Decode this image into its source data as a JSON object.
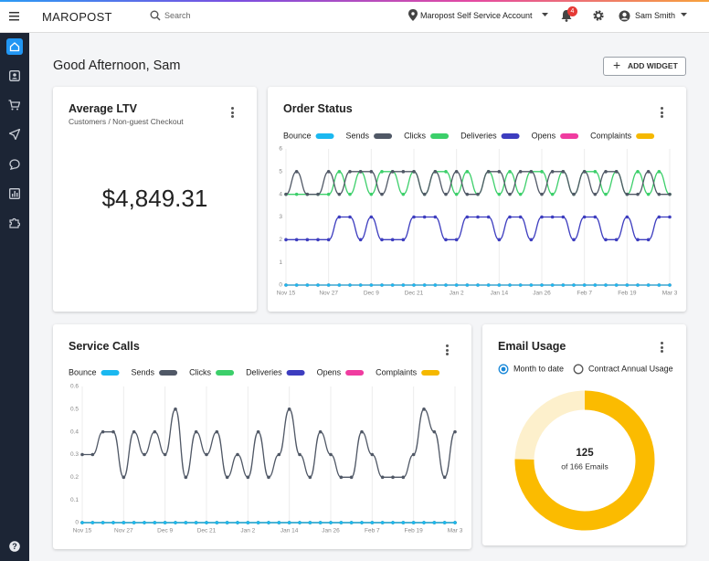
{
  "header": {
    "logo": "MAROPOST",
    "search_placeholder": "Search",
    "account": "Maropost Self Service Account",
    "notifications": "4",
    "user": "Sam Smith"
  },
  "page": {
    "greeting": "Good Afternoon, Sam",
    "add_widget": "ADD WIDGET"
  },
  "ltv_card": {
    "title": "Average LTV",
    "subtitle": "Customers / Non-guest Checkout",
    "value": "$4,849.31"
  },
  "chart_data": [
    {
      "type": "line",
      "title": "Order Status",
      "categories": [
        "Nov 15",
        null,
        null,
        null,
        "Nov 27",
        null,
        null,
        null,
        "Dec 9",
        null,
        null,
        null,
        "Dec 21",
        null,
        null,
        null,
        "Jan 2",
        null,
        null,
        null,
        "Jan 14",
        null,
        null,
        null,
        "Jan 26",
        null,
        null,
        null,
        "Feb 7",
        null,
        null,
        null,
        "Feb 19",
        null,
        null,
        null,
        "Mar 3"
      ],
      "ylim": [
        0,
        6
      ],
      "yticks": [
        0,
        1,
        2,
        3,
        4,
        5,
        6
      ],
      "series": [
        {
          "name": "Bounce",
          "color": "#1bb8f0",
          "values": [
            0,
            0,
            0,
            0,
            0,
            0,
            0,
            0,
            0,
            0,
            0,
            0,
            0,
            0,
            0,
            0,
            0,
            0,
            0,
            0,
            0,
            0,
            0,
            0,
            0,
            0,
            0,
            0,
            0,
            0,
            0,
            0,
            0,
            0,
            0,
            0,
            0
          ]
        },
        {
          "name": "Sends",
          "color": "#505866",
          "values": [
            4,
            5,
            4,
            4,
            5,
            4,
            5,
            5,
            5,
            4,
            5,
            5,
            5,
            4,
            5,
            4,
            5,
            4,
            4,
            5,
            5,
            4,
            5,
            5,
            4,
            5,
            5,
            4,
            5,
            4,
            5,
            5,
            4,
            4,
            5,
            4,
            4
          ]
        },
        {
          "name": "Clicks",
          "color": "#3ccf6a",
          "values": [
            4,
            4,
            4,
            4,
            4,
            5,
            4,
            5,
            4,
            5,
            5,
            4,
            5,
            4,
            5,
            5,
            4,
            5,
            4,
            5,
            4,
            5,
            4,
            5,
            5,
            4,
            5,
            4,
            5,
            5,
            4,
            5,
            4,
            5,
            4,
            5,
            4
          ]
        },
        {
          "name": "Deliveries",
          "color": "#3d3dbf",
          "values": [
            2,
            2,
            2,
            2,
            2,
            3,
            3,
            2,
            3,
            2,
            2,
            2,
            3,
            3,
            3,
            2,
            2,
            3,
            3,
            3,
            2,
            3,
            3,
            2,
            3,
            3,
            3,
            2,
            3,
            3,
            2,
            2,
            3,
            2,
            2,
            3,
            3
          ]
        },
        {
          "name": "Opens",
          "color": "#f03ca0",
          "values": [
            0,
            0,
            0,
            0,
            0,
            0,
            0,
            0,
            0,
            0,
            0,
            0,
            0,
            0,
            0,
            0,
            0,
            0,
            0,
            0,
            0,
            0,
            0,
            0,
            0,
            0,
            0,
            0,
            0,
            0,
            0,
            0,
            0,
            0,
            0,
            0,
            0
          ]
        },
        {
          "name": "Complaints",
          "color": "#f5b800",
          "values": [
            0,
            0,
            0,
            0,
            0,
            0,
            0,
            0,
            0,
            0,
            0,
            0,
            0,
            0,
            0,
            0,
            0,
            0,
            0,
            0,
            0,
            0,
            0,
            0,
            0,
            0,
            0,
            0,
            0,
            0,
            0,
            0,
            0,
            0,
            0,
            0,
            0
          ]
        }
      ]
    },
    {
      "type": "line",
      "title": "Service Calls",
      "categories": [
        "Nov 15",
        null,
        null,
        null,
        "Nov 27",
        null,
        null,
        null,
        "Dec 9",
        null,
        null,
        null,
        "Dec 21",
        null,
        null,
        null,
        "Jan 2",
        null,
        null,
        null,
        "Jan 14",
        null,
        null,
        null,
        "Jan 26",
        null,
        null,
        null,
        "Feb 7",
        null,
        null,
        null,
        "Feb 19",
        null,
        null,
        null,
        "Mar 3"
      ],
      "ylim": [
        0,
        0.6
      ],
      "yticks": [
        0,
        0.1,
        0.2,
        0.3,
        0.4,
        0.5,
        0.6
      ],
      "series": [
        {
          "name": "Bounce",
          "color": "#1bb8f0",
          "values": [
            0,
            0,
            0,
            0,
            0,
            0,
            0,
            0,
            0,
            0,
            0,
            0,
            0,
            0,
            0,
            0,
            0,
            0,
            0,
            0,
            0,
            0,
            0,
            0,
            0,
            0,
            0,
            0,
            0,
            0,
            0,
            0,
            0,
            0,
            0,
            0,
            0
          ]
        },
        {
          "name": "Sends",
          "color": "#505866",
          "values": [
            0.3,
            0.3,
            0.4,
            0.4,
            0.2,
            0.4,
            0.3,
            0.4,
            0.3,
            0.5,
            0.2,
            0.4,
            0.3,
            0.4,
            0.2,
            0.3,
            0.2,
            0.4,
            0.2,
            0.3,
            0.5,
            0.3,
            0.2,
            0.4,
            0.3,
            0.2,
            0.2,
            0.4,
            0.3,
            0.2,
            0.2,
            0.2,
            0.3,
            0.5,
            0.4,
            0.2,
            0.4
          ]
        },
        {
          "name": "Clicks",
          "color": "#3ccf6a",
          "values": [
            0,
            0,
            0,
            0,
            0,
            0,
            0,
            0,
            0,
            0,
            0,
            0,
            0,
            0,
            0,
            0,
            0,
            0,
            0,
            0,
            0,
            0,
            0,
            0,
            0,
            0,
            0,
            0,
            0,
            0,
            0,
            0,
            0,
            0,
            0,
            0,
            0
          ]
        },
        {
          "name": "Deliveries",
          "color": "#3d3dbf",
          "values": [
            0,
            0,
            0,
            0,
            0,
            0,
            0,
            0,
            0,
            0,
            0,
            0,
            0,
            0,
            0,
            0,
            0,
            0,
            0,
            0,
            0,
            0,
            0,
            0,
            0,
            0,
            0,
            0,
            0,
            0,
            0,
            0,
            0,
            0,
            0,
            0,
            0
          ]
        },
        {
          "name": "Opens",
          "color": "#f03ca0",
          "values": [
            0,
            0,
            0,
            0,
            0,
            0,
            0,
            0,
            0,
            0,
            0,
            0,
            0,
            0,
            0,
            0,
            0,
            0,
            0,
            0,
            0,
            0,
            0,
            0,
            0,
            0,
            0,
            0,
            0,
            0,
            0,
            0,
            0,
            0,
            0,
            0,
            0
          ]
        },
        {
          "name": "Complaints",
          "color": "#f5b800",
          "values": [
            0,
            0,
            0,
            0,
            0,
            0,
            0,
            0,
            0,
            0,
            0,
            0,
            0,
            0,
            0,
            0,
            0,
            0,
            0,
            0,
            0,
            0,
            0,
            0,
            0,
            0,
            0,
            0,
            0,
            0,
            0,
            0,
            0,
            0,
            0,
            0,
            0
          ]
        }
      ]
    },
    {
      "type": "donut",
      "title": "Email Usage",
      "options": [
        "Month to date",
        "Contract Annual Usage"
      ],
      "selected": 0,
      "value": 125,
      "total": 166,
      "center_sublabel": "of 166 Emails",
      "color": "#fbbb00",
      "track_color": "#fdf0cc"
    }
  ]
}
